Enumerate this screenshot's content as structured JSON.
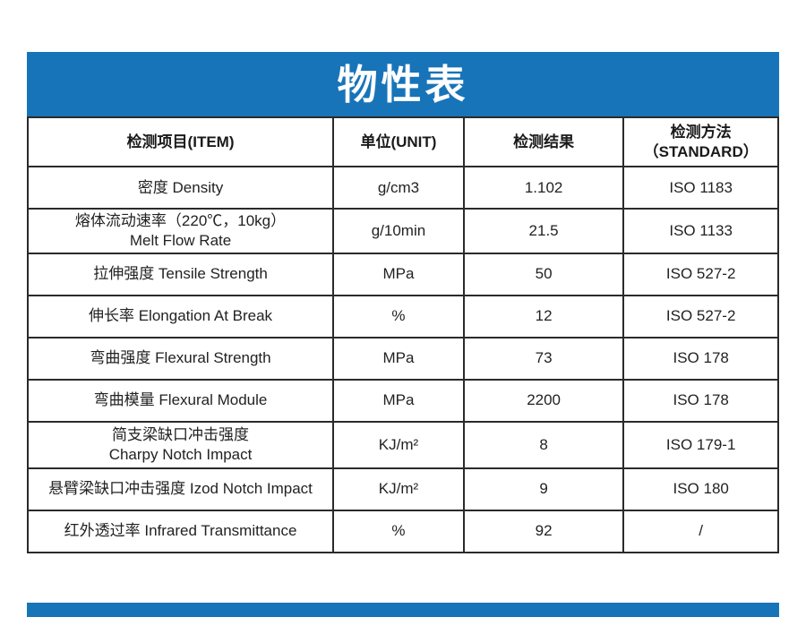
{
  "colors": {
    "accent": "#1874B8",
    "border": "#2a2a2a",
    "text": "#222222"
  },
  "banner": {
    "title": "物性表"
  },
  "table": {
    "headers": {
      "item": "检测项目(ITEM)",
      "unit": "单位(UNIT)",
      "result": "检测结果",
      "standard_line1": "检测方法",
      "standard_line2": "（STANDARD）"
    },
    "rows": [
      {
        "item_lines": [
          "密度 Density"
        ],
        "unit": "g/cm3",
        "result": "1.102",
        "standard": "ISO 1183"
      },
      {
        "item_lines": [
          "熔体流动速率（220℃，10kg）",
          "Melt Flow  Rate"
        ],
        "unit": "g/10min",
        "result": "21.5",
        "standard": "ISO 1133"
      },
      {
        "item_lines": [
          "拉伸强度 Tensile Strength"
        ],
        "unit": "MPa",
        "result": "50",
        "standard": "ISO 527-2"
      },
      {
        "item_lines": [
          "伸长率 Elongation At Break"
        ],
        "unit": "%",
        "result": "12",
        "standard": "ISO 527-2"
      },
      {
        "item_lines": [
          "弯曲强度 Flexural Strength"
        ],
        "unit": "MPa",
        "result": "73",
        "standard": "ISO 178"
      },
      {
        "item_lines": [
          "弯曲模量 Flexural Module"
        ],
        "unit": "MPa",
        "result": "2200",
        "standard": "ISO 178"
      },
      {
        "item_lines": [
          "简支梁缺口冲击强度",
          "Charpy Notch Impact"
        ],
        "unit": "KJ/m²",
        "result": "8",
        "standard": "ISO 179-1"
      },
      {
        "item_lines": [
          "悬臂梁缺口冲击强度 Izod Notch Impact"
        ],
        "unit": "KJ/m²",
        "result": "9",
        "standard": "ISO 180"
      },
      {
        "item_lines": [
          "红外透过率 Infrared Transmittance"
        ],
        "unit": "%",
        "result": "92",
        "standard": "/"
      }
    ]
  }
}
